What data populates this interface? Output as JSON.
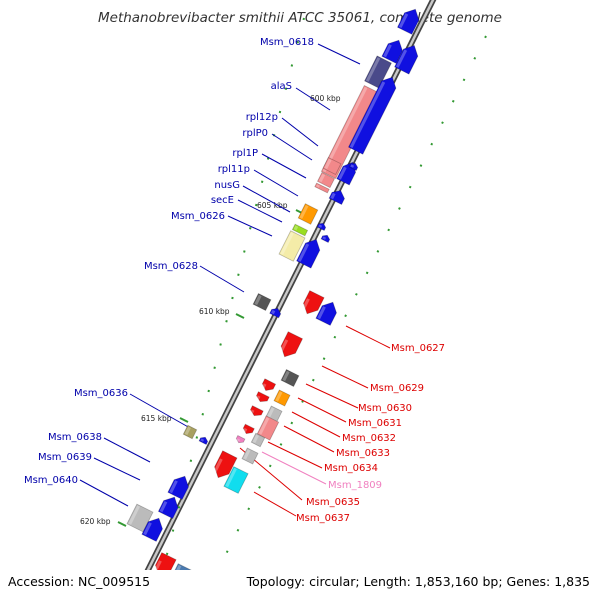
{
  "title": "Methanobrevibacter smithii ATCC 35061, complete genome",
  "footer": {
    "accession": "Accession: NC_009515",
    "topology": "Topology: circular; Length: 1,853,160 bp; Genes: 1,835"
  },
  "colors": {
    "forward_strand": "#1010e0",
    "reverse_strand": "#ee1111",
    "rna": "#f2888a",
    "gray": "#bbbbbb",
    "dark": "#555555",
    "orange": "#ff9900",
    "olive": "#a8a060",
    "cyan": "#11ddee",
    "slate": "#4a7ab0",
    "purple": "#4a4a8a",
    "yellow": "#f4eca8",
    "green": "#99dd22",
    "label_blue": "#0000aa",
    "label_red": "#dd0000",
    "label_pink": "#f080c0",
    "ticks": "#339933"
  },
  "ticks": [
    "600 kbp",
    "605 kbp",
    "610 kbp",
    "615 kbp",
    "620 kbp"
  ],
  "labels_left": [
    "Msm_0618",
    "alaS",
    "rpl12p",
    "rplP0",
    "rpl1P",
    "rpl11p",
    "nusG",
    "secE",
    "Msm_0626",
    "Msm_0628",
    "Msm_0636",
    "Msm_0638",
    "Msm_0639",
    "Msm_0640"
  ],
  "labels_right": [
    "Msm_0627",
    "Msm_0629",
    "Msm_0630",
    "Msm_0631",
    "Msm_0632",
    "Msm_0633",
    "Msm_0634",
    "Msm_1809",
    "Msm_0635",
    "Msm_0637"
  ]
}
